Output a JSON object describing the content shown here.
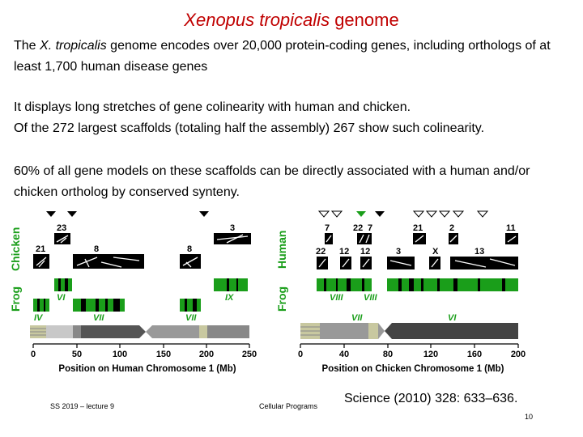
{
  "slide": {
    "title_italic": "Xenopus tropicalis",
    "title_rest": " genome",
    "p1_before": "The ",
    "p1_italic": "X. tropicalis",
    "p1_after": " genome encodes over 20,000 protein-coding genes, including orthologs of at least 1,700 human disease genes",
    "p2_line1": "It displays long stretches of gene colinearity with human and chicken.",
    "p2_line2": "Of the 272 largest scaffolds (totaling half the assembly) 267 show such colinearity.",
    "p3": "60% of all gene models on these scaffolds can be directly associated with a human and/or chicken ortholog by conserved synteny.",
    "footer_left": "SS 2019 – lecture 9",
    "footer_mid": "Cellular Programs",
    "citation": "Science (2010) 328: 633–636.",
    "page_number": "10"
  },
  "left_panel": {
    "label_top": "Chicken",
    "label_bottom": "Frog",
    "chicken_chr": [
      "23",
      "21",
      "8",
      "8",
      "3"
    ],
    "frog_chr": [
      "VI",
      "IX",
      "IV",
      "VII",
      "VII"
    ],
    "axis_title": "Position on Human Chromosome 1 (Mb)",
    "ticks": [
      "0",
      "50",
      "100",
      "150",
      "200",
      "250"
    ]
  },
  "right_panel": {
    "label_top": "Human",
    "label_bottom": "Frog",
    "human_chr": [
      "7",
      "22",
      "7",
      "21",
      "2",
      "11",
      "22",
      "12",
      "12",
      "3",
      "X",
      "13"
    ],
    "frog_chr": [
      "VIII",
      "VIII",
      "VII",
      "VI"
    ],
    "axis_title": "Position on Chicken Chromosome 1 (Mb)",
    "ticks": [
      "0",
      "40",
      "80",
      "120",
      "160",
      "200"
    ]
  },
  "colors": {
    "title": "#c00000",
    "frog_green": "#1a9e1a",
    "label_green": "#1a9e1a"
  }
}
